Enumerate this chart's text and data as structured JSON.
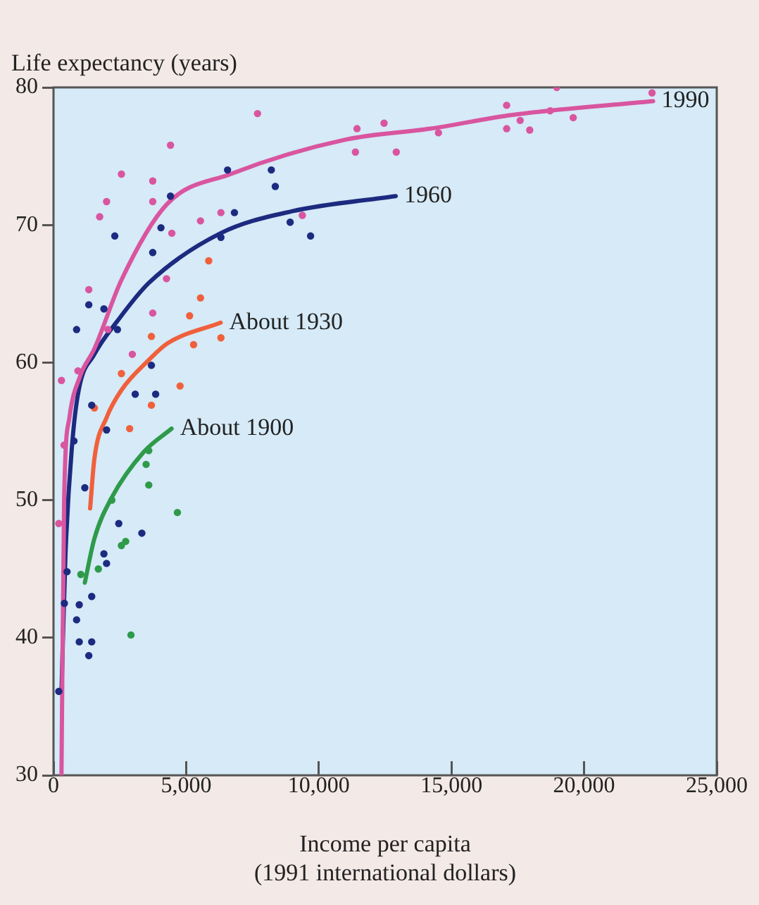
{
  "chart_data": {
    "type": "scatter",
    "ylabel": "Life expectancy (years)",
    "xlabel": "Income per capita\n(1991 international dollars)",
    "xlim": [
      0,
      25000
    ],
    "xticks": [
      0,
      {
        "value": 5000,
        "label": "5,000"
      },
      {
        "value": 10000,
        "label": "10,000"
      },
      {
        "value": 15000,
        "label": "15,000"
      },
      {
        "value": 20000,
        "label": "20,000"
      },
      {
        "value": 25000,
        "label": "25,000"
      }
    ],
    "ylim": [
      30,
      80
    ],
    "yticks": [
      30,
      40,
      50,
      60,
      70,
      80
    ],
    "legend": false,
    "series": [
      {
        "marker": "circle",
        "color": "#d9559f",
        "x": [
          7690,
          4410,
          2560,
          3740,
          2000,
          1740,
          3740,
          5540,
          6310,
          9380,
          4460,
          4260,
          1330,
          3740,
          2050,
          2970,
          920,
          11440,
          11380,
          12460,
          12920,
          14510,
          17080,
          17080,
          17590,
          17950,
          18720,
          18970,
          19590,
          22560,
          200,
          400,
          300
        ],
        "values": [
          78.1,
          75.8,
          73.7,
          73.2,
          71.7,
          70.6,
          71.7,
          70.3,
          70.9,
          70.7,
          69.4,
          66.1,
          65.3,
          63.6,
          62.4,
          60.6,
          59.4,
          77,
          75.3,
          77.4,
          75.3,
          76.7,
          78.7,
          77,
          77.6,
          76.9,
          78.3,
          80,
          77.8,
          79.6,
          48.3,
          54,
          58.7
        ]
      },
      {
        "marker": "circle",
        "color": "#1c2a80",
        "x": [
          870,
          1330,
          1900,
          2310,
          2410,
          4410,
          4050,
          3740,
          6560,
          6820,
          6310,
          8210,
          8360,
          8920,
          9690,
          3690,
          3080,
          3850,
          2000,
          770,
          1180,
          2460,
          3330,
          1900,
          2000,
          510,
          1440,
          970,
          410,
          870,
          970,
          1440,
          1330,
          200,
          1440
        ],
        "values": [
          62.4,
          64.2,
          63.9,
          69.2,
          62.4,
          72.1,
          69.8,
          68,
          74,
          70.9,
          69.1,
          74,
          72.8,
          70.2,
          69.2,
          59.8,
          57.7,
          57.7,
          55.1,
          54.3,
          50.9,
          48.3,
          47.6,
          46.1,
          45.4,
          44.8,
          43,
          42.4,
          42.5,
          41.3,
          39.7,
          39.7,
          38.7,
          36.1,
          56.9
        ]
      },
      {
        "marker": "circle",
        "color": "#f0603c",
        "x": [
          5850,
          5540,
          5130,
          6310,
          5280,
          3690,
          2560,
          4770,
          2870,
          3690,
          1540
        ],
        "values": [
          67.4,
          64.7,
          63.4,
          61.8,
          61.3,
          61.9,
          59.2,
          58.3,
          55.2,
          56.9,
          56.7
        ]
      },
      {
        "marker": "circle",
        "color": "#2e9a4a",
        "x": [
          3490,
          3590,
          2200,
          4670,
          2720,
          2560,
          1030,
          1690,
          2920,
          3590
        ],
        "values": [
          52.6,
          51.1,
          50,
          49.1,
          47,
          46.7,
          44.6,
          45,
          40.2,
          53.6
        ]
      },
      {
        "type": "line",
        "marker": "none",
        "name": "1990",
        "color": "#d9559f",
        "x": [
          300,
          400,
          600,
          1000,
          1540,
          2560,
          4270,
          6670,
          11000,
          14200,
          17300,
          22600
        ],
        "values": [
          30,
          50,
          56,
          59,
          61,
          66,
          71.5,
          73.7,
          76.2,
          77,
          78,
          79
        ]
      },
      {
        "type": "line",
        "marker": "none",
        "name": "1960",
        "color": "#1c2a80",
        "x": [
          300,
          450,
          700,
          950,
          1540,
          2400,
          3600,
          6300,
          9000,
          12900
        ],
        "values": [
          36,
          46,
          54,
          58,
          60.6,
          63,
          65.8,
          69.4,
          71,
          72.1
        ]
      },
      {
        "type": "line",
        "marker": "none",
        "name": "About 1930",
        "color": "#f0603c",
        "x": [
          1380,
          1540,
          2000,
          2560,
          3600,
          4300,
          6300
        ],
        "values": [
          49.4,
          53,
          56,
          58,
          60.2,
          61.4,
          62.9
        ]
      },
      {
        "type": "line",
        "marker": "none",
        "name": "About 1900",
        "color": "#2e9a4a",
        "x": [
          1180,
          1540,
          2200,
          3400,
          4450
        ],
        "values": [
          44,
          47.2,
          50.2,
          53.5,
          55.2
        ]
      }
    ]
  }
}
